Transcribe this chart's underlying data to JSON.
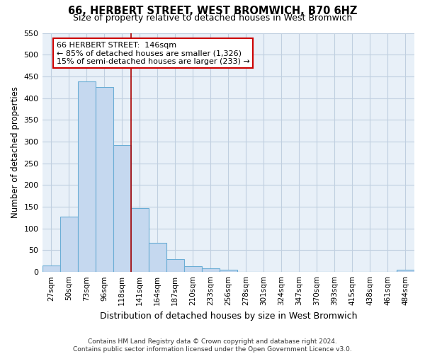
{
  "title": "66, HERBERT STREET, WEST BROMWICH, B70 6HZ",
  "subtitle": "Size of property relative to detached houses in West Bromwich",
  "xlabel": "Distribution of detached houses by size in West Bromwich",
  "ylabel": "Number of detached properties",
  "bar_labels": [
    "27sqm",
    "50sqm",
    "73sqm",
    "96sqm",
    "118sqm",
    "141sqm",
    "164sqm",
    "187sqm",
    "210sqm",
    "233sqm",
    "256sqm",
    "278sqm",
    "301sqm",
    "324sqm",
    "347sqm",
    "370sqm",
    "393sqm",
    "415sqm",
    "438sqm",
    "461sqm",
    "484sqm"
  ],
  "bar_heights": [
    15,
    128,
    438,
    425,
    292,
    147,
    67,
    29,
    13,
    8,
    5,
    0,
    0,
    0,
    0,
    0,
    0,
    0,
    0,
    0,
    5
  ],
  "bar_color": "#c5d8ef",
  "bar_edge_color": "#6aadd5",
  "vline_x_index": 4,
  "vline_color": "#aa0000",
  "annotation_title": "66 HERBERT STREET:  146sqm",
  "annotation_line1": "← 85% of detached houses are smaller (1,326)",
  "annotation_line2": "15% of semi-detached houses are larger (233) →",
  "annotation_box_color": "#ffffff",
  "annotation_box_edge": "#cc0000",
  "ylim": [
    0,
    550
  ],
  "yticks": [
    0,
    50,
    100,
    150,
    200,
    250,
    300,
    350,
    400,
    450,
    500,
    550
  ],
  "bg_color": "#e8f0f8",
  "grid_color": "#c0cfe0",
  "footer_line1": "Contains HM Land Registry data © Crown copyright and database right 2024.",
  "footer_line2": "Contains public sector information licensed under the Open Government Licence v3.0."
}
